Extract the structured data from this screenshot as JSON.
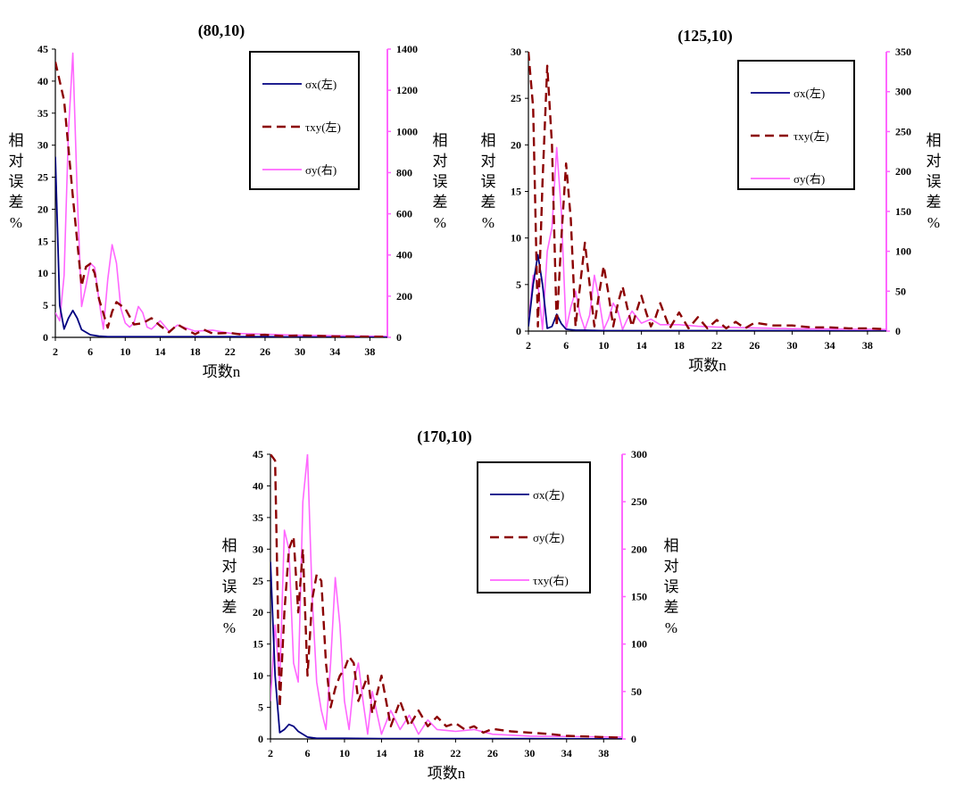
{
  "colors": {
    "blue": "#000080",
    "darkred": "#8b0000",
    "magenta": "#ff66ff",
    "axis": "#000000",
    "right_axis": "#ff66ff"
  },
  "chart_data": [
    {
      "type": "line",
      "title": "(80,10)",
      "xlabel": "项数n",
      "ylabel_left": "相对误差%",
      "ylabel_right": "相对误差%",
      "xlim": [
        2,
        40
      ],
      "xticks": [
        2,
        6,
        10,
        14,
        18,
        22,
        26,
        30,
        34,
        38
      ],
      "ylim_left": [
        0,
        45
      ],
      "yticks_left": [
        0,
        5,
        10,
        15,
        20,
        25,
        30,
        35,
        40,
        45
      ],
      "ylim_right": [
        0,
        1400
      ],
      "yticks_right": [
        0,
        200,
        400,
        600,
        800,
        1000,
        1200,
        1400
      ],
      "legend_position": "top-right",
      "series": [
        {
          "name": "σx(左)",
          "axis": "left",
          "color": "blue",
          "style": "solid",
          "x": [
            2,
            2.5,
            3,
            3.5,
            4,
            4.5,
            5,
            6,
            7,
            8,
            10,
            14,
            18,
            22,
            26,
            30,
            40
          ],
          "y": [
            28.2,
            5,
            1.3,
            3,
            4.2,
            3,
            1.2,
            0.4,
            0.2,
            0.1,
            0.1,
            0.1,
            0.1,
            0.1,
            0.1,
            0.05,
            0
          ]
        },
        {
          "name": "τxy(左)",
          "axis": "left",
          "color": "darkred",
          "style": "dashed",
          "x": [
            2,
            3,
            4,
            5,
            5.5,
            6,
            6.5,
            7,
            8,
            8.5,
            9,
            10,
            11,
            12,
            13,
            14,
            15,
            16,
            17,
            18,
            19,
            20,
            22,
            24,
            26,
            28,
            30,
            34,
            38,
            40
          ],
          "y": [
            43,
            37,
            22,
            8,
            11,
            11.5,
            10,
            6,
            1.5,
            4,
            5.5,
            4.5,
            2,
            2.2,
            3,
            1.8,
            0.8,
            2,
            1.2,
            0.5,
            1.2,
            0.6,
            0.7,
            0.3,
            0.4,
            0.2,
            0.3,
            0.15,
            0.1,
            0.1
          ]
        },
        {
          "name": "σy(右)",
          "axis": "right",
          "color": "magenta",
          "style": "solid",
          "x": [
            2,
            2.5,
            3,
            3.5,
            4,
            4.5,
            5,
            5.5,
            6,
            6.5,
            7,
            7.5,
            8,
            8.5,
            9,
            9.5,
            10,
            10.5,
            11,
            11.5,
            12,
            12.5,
            13,
            14,
            15,
            16,
            18,
            20,
            22,
            26,
            30,
            40
          ],
          "y": [
            120,
            80,
            300,
            1000,
            1380,
            700,
            150,
            250,
            360,
            340,
            180,
            40,
            280,
            450,
            360,
            140,
            70,
            50,
            70,
            150,
            120,
            50,
            40,
            80,
            30,
            60,
            30,
            35,
            20,
            15,
            10,
            5
          ]
        }
      ]
    },
    {
      "type": "line",
      "title": "(125,10)",
      "xlabel": "项数n",
      "ylabel_left": "相对误差%",
      "ylabel_right": "相对误差%",
      "xlim": [
        2,
        40
      ],
      "xticks": [
        2,
        6,
        10,
        14,
        18,
        22,
        26,
        30,
        34,
        38
      ],
      "ylim_left": [
        0,
        30
      ],
      "yticks_left": [
        0,
        5,
        10,
        15,
        20,
        25,
        30
      ],
      "ylim_right": [
        0,
        350
      ],
      "yticks_right": [
        0,
        50,
        100,
        150,
        200,
        250,
        300,
        350
      ],
      "legend_position": "top-right",
      "series": [
        {
          "name": "σx(左)",
          "axis": "left",
          "color": "blue",
          "style": "solid",
          "x": [
            2,
            2.5,
            3,
            3.5,
            4,
            4.5,
            5,
            5.5,
            6,
            7,
            8,
            10,
            14,
            18,
            22,
            30,
            40
          ],
          "y": [
            0.5,
            5,
            8.2,
            5,
            0.3,
            0.5,
            1.8,
            0.8,
            0.2,
            0.1,
            0.1,
            0.05,
            0.05,
            0.05,
            0.05,
            0.05,
            0
          ]
        },
        {
          "name": "τxy(左)",
          "axis": "left",
          "color": "darkred",
          "style": "dashed",
          "x": [
            2,
            2.5,
            3,
            3.5,
            4,
            4.5,
            5,
            5.5,
            6,
            6.5,
            7,
            7.5,
            8,
            8.5,
            9,
            9.5,
            10,
            10.5,
            11,
            11.5,
            12,
            12.5,
            13,
            13.5,
            14,
            14.5,
            15,
            15.5,
            16,
            17,
            18,
            19,
            20,
            21,
            22,
            23,
            24,
            25,
            26,
            28,
            30,
            32,
            34,
            36,
            38,
            40
          ],
          "y": [
            30,
            24,
            0.5,
            16,
            28.5,
            20,
            0.5,
            10,
            18,
            12,
            0.5,
            5,
            9.5,
            5,
            0.5,
            4,
            7,
            4,
            0.5,
            3,
            4.8,
            2.5,
            0.5,
            2.2,
            3.8,
            2,
            0.5,
            1.5,
            3,
            0.3,
            2,
            0.3,
            1.5,
            0.3,
            1.2,
            0.3,
            1,
            0.3,
            0.9,
            0.6,
            0.6,
            0.4,
            0.4,
            0.3,
            0.3,
            0.2
          ]
        },
        {
          "name": "σy(右)",
          "axis": "right",
          "color": "magenta",
          "style": "solid",
          "x": [
            2,
            2.5,
            3,
            3.5,
            4,
            4.5,
            5,
            5.5,
            6,
            6.5,
            7,
            7.5,
            8,
            8.5,
            9,
            9.5,
            10,
            10.5,
            11,
            11.5,
            12,
            12.5,
            13,
            14,
            15,
            16,
            18,
            20,
            22,
            26,
            30,
            40
          ],
          "y": [
            10,
            70,
            60,
            2,
            100,
            130,
            230,
            150,
            2,
            30,
            50,
            20,
            2,
            20,
            70,
            40,
            2,
            15,
            35,
            25,
            2,
            15,
            25,
            10,
            15,
            8,
            8,
            6,
            5,
            4,
            3,
            2
          ]
        }
      ]
    },
    {
      "type": "line",
      "title": "(170,10)",
      "xlabel": "项数n",
      "ylabel_left": "相对误差%",
      "ylabel_right": "相对误差%",
      "xlim": [
        2,
        40
      ],
      "xticks": [
        2,
        6,
        10,
        14,
        18,
        22,
        26,
        30,
        34,
        38
      ],
      "ylim_left": [
        0,
        45
      ],
      "yticks_left": [
        0,
        5,
        10,
        15,
        20,
        25,
        30,
        35,
        40,
        45
      ],
      "ylim_right": [
        0,
        300
      ],
      "yticks_right": [
        0,
        50,
        100,
        150,
        200,
        250,
        300
      ],
      "legend_position": "top-right",
      "series": [
        {
          "name": "σx(左)",
          "axis": "left",
          "color": "blue",
          "style": "solid",
          "x": [
            2,
            2.5,
            3,
            3.5,
            4,
            4.5,
            5,
            6,
            7,
            8,
            10,
            14,
            18,
            22,
            30,
            40
          ],
          "y": [
            28,
            10,
            1,
            1.5,
            2.3,
            2,
            1.2,
            0.3,
            0.1,
            0.1,
            0.1,
            0.05,
            0.05,
            0.05,
            0.05,
            0
          ]
        },
        {
          "name": "σy(左)",
          "axis": "left",
          "color": "darkred",
          "style": "dashed",
          "x": [
            2,
            2.5,
            3,
            3.5,
            4,
            4.5,
            5,
            5.5,
            6,
            6.5,
            7,
            7.5,
            8,
            8.5,
            9,
            9.5,
            10,
            10.5,
            11,
            11.5,
            12,
            12.5,
            13,
            13.5,
            14,
            15,
            16,
            17,
            18,
            19,
            20,
            21,
            22,
            23,
            24,
            25,
            26,
            28,
            30,
            32,
            34,
            36,
            38,
            40
          ],
          "y": [
            45,
            44,
            5,
            20,
            30,
            32,
            20,
            30,
            10,
            22,
            26,
            25,
            12,
            5,
            8,
            10,
            11,
            13,
            12,
            6,
            8,
            10,
            4,
            7,
            10,
            2,
            6,
            2,
            4.5,
            2,
            3.5,
            2,
            2.5,
            1.5,
            2,
            1,
            1.6,
            1.2,
            1,
            0.8,
            0.5,
            0.4,
            0.3,
            0.2
          ]
        },
        {
          "name": "τxy(右)",
          "axis": "right",
          "color": "magenta",
          "style": "solid",
          "x": [
            2,
            2.5,
            3,
            3.5,
            4,
            4.5,
            5,
            5.5,
            6,
            6.5,
            7,
            7.5,
            8,
            8.5,
            9,
            9.5,
            10,
            10.5,
            11,
            11.5,
            12,
            12.5,
            13,
            14,
            15,
            16,
            17,
            18,
            19,
            20,
            22,
            24,
            26,
            30,
            40
          ],
          "y": [
            40,
            120,
            60,
            220,
            200,
            80,
            60,
            250,
            300,
            150,
            60,
            30,
            10,
            80,
            170,
            120,
            40,
            10,
            60,
            80,
            40,
            5,
            50,
            5,
            30,
            10,
            25,
            5,
            20,
            10,
            8,
            10,
            5,
            3,
            2
          ]
        }
      ]
    }
  ]
}
